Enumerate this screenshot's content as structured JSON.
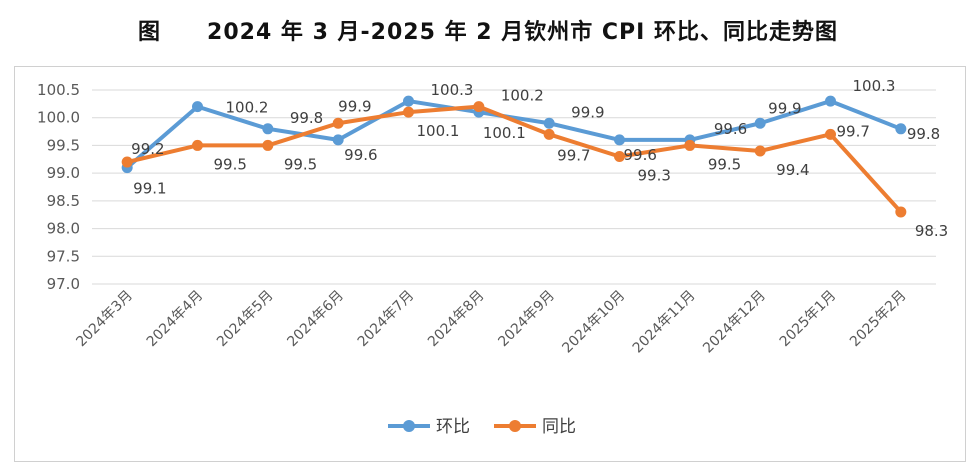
{
  "chart_data": {
    "type": "line",
    "title": "图　　2024 年 3 月-2025 年 2 月钦州市 CPI 环比、同比走势图",
    "categories": [
      "2024年3月",
      "2024年4月",
      "2024年5月",
      "2024年6月",
      "2024年7月",
      "2024年8月",
      "2024年9月",
      "2024年10月",
      "2024年11月",
      "2024年12月",
      "2025年1月",
      "2025年2月"
    ],
    "series": [
      {
        "name": "环比",
        "color": "#5B9BD5",
        "values": [
          99.1,
          100.2,
          99.8,
          99.6,
          100.3,
          100.1,
          99.9,
          99.6,
          99.6,
          99.9,
          100.3,
          99.8
        ],
        "labels": [
          "99.1",
          "100.2",
          "99.8",
          "99.6",
          "100.3",
          "100.1",
          "99.9",
          "99.6",
          "99.6",
          "99.9",
          "100.3",
          "99.8"
        ]
      },
      {
        "name": "同比",
        "color": "#ED7D31",
        "values": [
          99.2,
          99.5,
          99.5,
          99.9,
          100.1,
          100.2,
          99.7,
          99.3,
          99.5,
          99.4,
          99.7,
          98.3
        ],
        "labels": [
          "99.2",
          "99.5",
          "99.5",
          "99.9",
          "100.1",
          "100.2",
          "99.7",
          "99.3",
          "99.5",
          "99.4",
          "99.7",
          "98.3"
        ]
      }
    ],
    "ylim": [
      97.0,
      100.5
    ],
    "yticks": [
      "97.0",
      "97.5",
      "98.0",
      "98.5",
      "99.0",
      "99.5",
      "100.0",
      "100.5"
    ],
    "grid": true,
    "legend": "bottom-center"
  }
}
